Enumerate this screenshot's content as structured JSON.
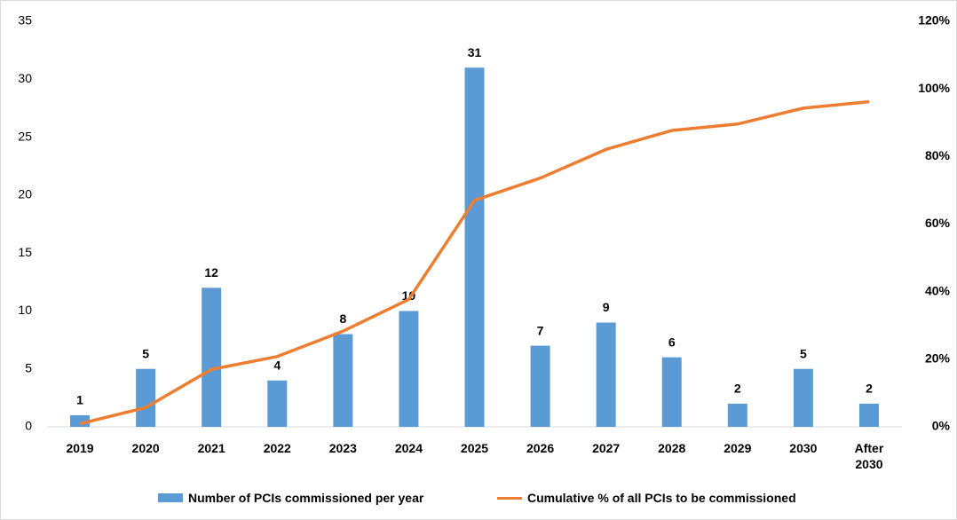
{
  "chart_data": {
    "type": "bar_line",
    "categories": [
      "2019",
      "2020",
      "2021",
      "2022",
      "2023",
      "2024",
      "2025",
      "2026",
      "2027",
      "2028",
      "2029",
      "2030",
      "After 2030"
    ],
    "series": [
      {
        "name": "Number of PCIs commissioned per year",
        "color": "#5b9bd5",
        "type": "bar",
        "values": [
          1,
          5,
          12,
          4,
          8,
          10,
          31,
          7,
          9,
          6,
          2,
          5,
          2
        ]
      },
      {
        "name": "Cumulative % of all PCIs to be commissioned",
        "color": "#ed7d31",
        "type": "line",
        "axis": "y2",
        "values": [
          0.9,
          5.7,
          17.0,
          20.8,
          28.3,
          37.7,
          67.0,
          73.6,
          82.1,
          87.7,
          89.6,
          94.3,
          96.2
        ]
      }
    ],
    "ylim": [
      0,
      35
    ],
    "yticks": [
      0,
      5,
      10,
      15,
      20,
      25,
      30,
      35
    ],
    "y2lim": [
      0,
      120
    ],
    "y2ticks": [
      {
        "value": 0,
        "label": "0%"
      },
      {
        "value": 20,
        "label": "20%"
      },
      {
        "value": 40,
        "label": "40%"
      },
      {
        "value": 60,
        "label": "60%"
      },
      {
        "value": 80,
        "label": "80%"
      },
      {
        "value": 100,
        "label": "100%"
      },
      {
        "value": 120,
        "label": "120%"
      }
    ],
    "legend": "bottom"
  }
}
